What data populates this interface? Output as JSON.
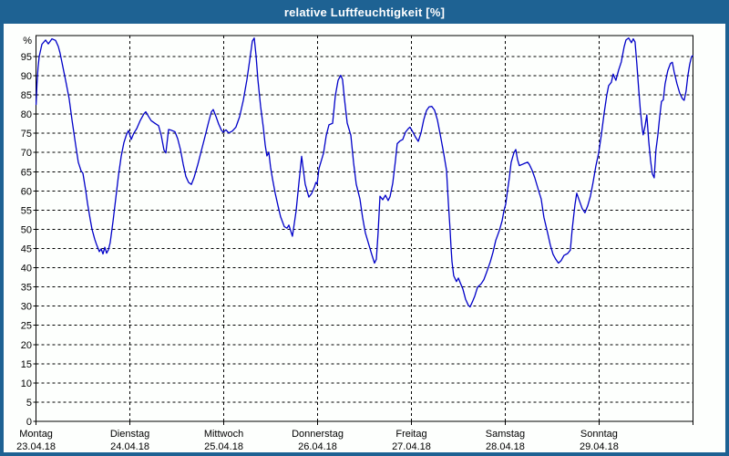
{
  "window": {
    "title": "relative Luftfeuchtigkeit [%]"
  },
  "colors": {
    "titlebar_bg": "#1E6293",
    "titlebar_text": "#FFFFFF",
    "frame": "#1E6293",
    "chart_bg": "#FDFFFD",
    "line": "#0000C8",
    "grid": "#000000",
    "axis": "#000000",
    "label_text": "#000000"
  },
  "chart_data": {
    "type": "line",
    "title": "relative Luftfeuchtigkeit [%]",
    "ylabel": "%",
    "ylim": [
      0,
      100.5
    ],
    "yticks": [
      0,
      5,
      10,
      15,
      20,
      25,
      30,
      35,
      40,
      45,
      50,
      55,
      60,
      65,
      70,
      75,
      80,
      85,
      90,
      95
    ],
    "grid": "dashed",
    "x_unit": "days",
    "xlim": [
      0,
      7
    ],
    "x_categories": [
      {
        "day": "Montag",
        "date": "23.04.18"
      },
      {
        "day": "Dienstag",
        "date": "24.04.18"
      },
      {
        "day": "Mittwoch",
        "date": "25.04.18"
      },
      {
        "day": "Donnerstag",
        "date": "26.04.18"
      },
      {
        "day": "Freitag",
        "date": "27.04.18"
      },
      {
        "day": "Samstag",
        "date": "28.04.18"
      },
      {
        "day": "Sonntag",
        "date": "29.04.18"
      }
    ],
    "legend": "none",
    "series": [
      {
        "name": "relative Luftfeuchtigkeit",
        "color": "#0000C8",
        "points": [
          [
            0,
            82.5
          ],
          [
            0.01,
            88
          ],
          [
            0.02,
            92
          ],
          [
            0.033,
            95
          ],
          [
            0.062,
            98.2
          ],
          [
            0.101,
            99.3
          ],
          [
            0.13,
            98.3
          ],
          [
            0.169,
            99.6
          ],
          [
            0.208,
            99.2
          ],
          [
            0.237,
            97.6
          ],
          [
            0.256,
            95.8
          ],
          [
            0.285,
            92.4
          ],
          [
            0.315,
            88.8
          ],
          [
            0.353,
            84
          ],
          [
            0.383,
            78.5
          ],
          [
            0.421,
            72
          ],
          [
            0.45,
            67.5
          ],
          [
            0.48,
            65.2
          ],
          [
            0.499,
            64.6
          ],
          [
            0.528,
            60.2
          ],
          [
            0.548,
            56.8
          ],
          [
            0.577,
            52.6
          ],
          [
            0.596,
            50
          ],
          [
            0.625,
            47.4
          ],
          [
            0.645,
            46
          ],
          [
            0.674,
            44.2
          ],
          [
            0.693,
            44.9
          ],
          [
            0.713,
            43.6
          ],
          [
            0.732,
            45.3
          ],
          [
            0.752,
            43.8
          ],
          [
            0.771,
            44.7
          ],
          [
            0.79,
            46.5
          ],
          [
            0.82,
            52
          ],
          [
            0.849,
            58
          ],
          [
            0.878,
            64
          ],
          [
            0.907,
            69
          ],
          [
            0.936,
            72.6
          ],
          [
            0.965,
            74.8
          ],
          [
            0.985,
            75.7
          ],
          [
            1.014,
            73.4
          ],
          [
            1.043,
            75.1
          ],
          [
            1.072,
            76.2
          ],
          [
            1.111,
            78.4
          ],
          [
            1.15,
            80.1
          ],
          [
            1.169,
            80.6
          ],
          [
            1.198,
            79.4
          ],
          [
            1.227,
            78.3
          ],
          [
            1.266,
            77.6
          ],
          [
            1.305,
            77
          ],
          [
            1.334,
            74.4
          ],
          [
            1.363,
            70.6
          ],
          [
            1.383,
            69.9
          ],
          [
            1.412,
            76
          ],
          [
            1.441,
            75.8
          ],
          [
            1.48,
            75.4
          ],
          [
            1.509,
            73.6
          ],
          [
            1.538,
            70.8
          ],
          [
            1.567,
            67
          ],
          [
            1.596,
            63.8
          ],
          [
            1.626,
            62.2
          ],
          [
            1.655,
            61.7
          ],
          [
            1.684,
            63.5
          ],
          [
            1.723,
            66.8
          ],
          [
            1.762,
            70.5
          ],
          [
            1.8,
            74.1
          ],
          [
            1.839,
            78
          ],
          [
            1.868,
            80.6
          ],
          [
            1.888,
            81.2
          ],
          [
            1.917,
            79.4
          ],
          [
            1.946,
            77.4
          ],
          [
            1.975,
            75.8
          ],
          [
            1.995,
            75.3
          ],
          [
            2.024,
            75.9
          ],
          [
            2.053,
            75.1
          ],
          [
            2.092,
            75.6
          ],
          [
            2.13,
            76.6
          ],
          [
            2.169,
            79.3
          ],
          [
            2.208,
            83.6
          ],
          [
            2.247,
            89
          ],
          [
            2.276,
            94
          ],
          [
            2.305,
            99
          ],
          [
            2.325,
            99.8
          ],
          [
            2.344,
            95.2
          ],
          [
            2.364,
            89
          ],
          [
            2.393,
            82
          ],
          [
            2.422,
            76.5
          ],
          [
            2.441,
            72
          ],
          [
            2.46,
            69.1
          ],
          [
            2.48,
            70.1
          ],
          [
            2.499,
            66.2
          ],
          [
            2.519,
            63.2
          ],
          [
            2.548,
            59.4
          ],
          [
            2.577,
            56.2
          ],
          [
            2.606,
            53.3
          ],
          [
            2.645,
            50.7
          ],
          [
            2.674,
            50.3
          ],
          [
            2.694,
            51.1
          ],
          [
            2.732,
            48.2
          ],
          [
            2.771,
            54.7
          ],
          [
            2.8,
            61.8
          ],
          [
            2.83,
            69
          ],
          [
            2.868,
            61.8
          ],
          [
            2.907,
            58.4
          ],
          [
            2.936,
            59.3
          ],
          [
            2.966,
            61
          ],
          [
            2.981,
            62.2
          ],
          [
            2.995,
            61.8
          ],
          [
            3.014,
            65.8
          ],
          [
            3.063,
            69.8
          ],
          [
            3.092,
            74.4
          ],
          [
            3.121,
            77.2
          ],
          [
            3.16,
            77.6
          ],
          [
            3.189,
            84.8
          ],
          [
            3.218,
            88.8
          ],
          [
            3.247,
            90.1
          ],
          [
            3.266,
            89
          ],
          [
            3.286,
            84
          ],
          [
            3.315,
            77.7
          ],
          [
            3.354,
            74.5
          ],
          [
            3.383,
            67.4
          ],
          [
            3.412,
            61.8
          ],
          [
            3.451,
            57.9
          ],
          [
            3.48,
            53.1
          ],
          [
            3.509,
            49.1
          ],
          [
            3.548,
            45.9
          ],
          [
            3.577,
            43.5
          ],
          [
            3.607,
            41.2
          ],
          [
            3.626,
            42.2
          ],
          [
            3.645,
            49
          ],
          [
            3.665,
            58.6
          ],
          [
            3.694,
            57.7
          ],
          [
            3.723,
            58.9
          ],
          [
            3.752,
            57.5
          ],
          [
            3.772,
            58.5
          ],
          [
            3.801,
            62
          ],
          [
            3.83,
            68
          ],
          [
            3.849,
            72.3
          ],
          [
            3.878,
            73
          ],
          [
            3.908,
            73.4
          ],
          [
            3.937,
            75.3
          ],
          [
            3.966,
            76.2
          ],
          [
            3.985,
            76.6
          ],
          [
            4.014,
            75.4
          ],
          [
            4.044,
            74
          ],
          [
            4.073,
            72.9
          ],
          [
            4.102,
            75.1
          ],
          [
            4.131,
            78.5
          ],
          [
            4.16,
            80.9
          ],
          [
            4.189,
            81.9
          ],
          [
            4.218,
            82
          ],
          [
            4.247,
            81
          ],
          [
            4.277,
            78.5
          ],
          [
            4.315,
            73.7
          ],
          [
            4.344,
            69.8
          ],
          [
            4.374,
            65.4
          ],
          [
            4.393,
            57
          ],
          [
            4.412,
            50
          ],
          [
            4.422,
            45.6
          ],
          [
            4.432,
            41.6
          ],
          [
            4.451,
            37.9
          ],
          [
            4.48,
            36.4
          ],
          [
            4.5,
            37.3
          ],
          [
            4.519,
            36.2
          ],
          [
            4.548,
            34.5
          ],
          [
            4.577,
            31.8
          ],
          [
            4.607,
            30.2
          ],
          [
            4.626,
            29.8
          ],
          [
            4.655,
            31.4
          ],
          [
            4.675,
            32.6
          ],
          [
            4.704,
            34.9
          ],
          [
            4.743,
            35.8
          ],
          [
            4.772,
            36.9
          ],
          [
            4.801,
            38.8
          ],
          [
            4.84,
            41.5
          ],
          [
            4.869,
            44
          ],
          [
            4.898,
            47.1
          ],
          [
            4.937,
            49.7
          ],
          [
            4.966,
            52.2
          ],
          [
            4.985,
            54.7
          ],
          [
            5.005,
            56.6
          ],
          [
            5.024,
            60
          ],
          [
            5.044,
            63.5
          ],
          [
            5.063,
            67.4
          ],
          [
            5.092,
            69.9
          ],
          [
            5.112,
            70.8
          ],
          [
            5.131,
            68.2
          ],
          [
            5.15,
            66.6
          ],
          [
            5.18,
            66.9
          ],
          [
            5.209,
            67.2
          ],
          [
            5.238,
            67.5
          ],
          [
            5.257,
            66.9
          ],
          [
            5.286,
            65.4
          ],
          [
            5.315,
            63.4
          ],
          [
            5.354,
            60.2
          ],
          [
            5.383,
            57.9
          ],
          [
            5.412,
            53.1
          ],
          [
            5.451,
            49.1
          ],
          [
            5.48,
            45.9
          ],
          [
            5.509,
            43.5
          ],
          [
            5.538,
            42.2
          ],
          [
            5.567,
            41.2
          ],
          [
            5.597,
            41.9
          ],
          [
            5.626,
            43.2
          ],
          [
            5.665,
            43.7
          ],
          [
            5.694,
            44.6
          ],
          [
            5.713,
            50
          ],
          [
            5.742,
            56.3
          ],
          [
            5.762,
            59.4
          ],
          [
            5.791,
            57.4
          ],
          [
            5.82,
            55.4
          ],
          [
            5.849,
            54.3
          ],
          [
            5.878,
            56.1
          ],
          [
            5.907,
            58.6
          ],
          [
            5.936,
            62.2
          ],
          [
            5.966,
            66.5
          ],
          [
            5.995,
            69.8
          ],
          [
            6.024,
            74.6
          ],
          [
            6.053,
            80.1
          ],
          [
            6.082,
            85
          ],
          [
            6.102,
            87.4
          ],
          [
            6.131,
            88.3
          ],
          [
            6.15,
            90.4
          ],
          [
            6.179,
            88.8
          ],
          [
            6.208,
            91.4
          ],
          [
            6.237,
            93.6
          ],
          [
            6.267,
            97.5
          ],
          [
            6.286,
            99.3
          ],
          [
            6.315,
            99.8
          ],
          [
            6.344,
            98.6
          ],
          [
            6.364,
            99.6
          ],
          [
            6.383,
            98.8
          ],
          [
            6.403,
            93
          ],
          [
            6.422,
            86.5
          ],
          [
            6.441,
            80.8
          ],
          [
            6.461,
            76
          ],
          [
            6.47,
            74.6
          ],
          [
            6.49,
            76.9
          ],
          [
            6.509,
            79.8
          ],
          [
            6.529,
            73
          ],
          [
            6.548,
            68
          ],
          [
            6.567,
            64.5
          ],
          [
            6.587,
            63.4
          ],
          [
            6.606,
            70.6
          ],
          [
            6.626,
            74.5
          ],
          [
            6.645,
            79
          ],
          [
            6.665,
            83.3
          ],
          [
            6.684,
            83.7
          ],
          [
            6.703,
            87.8
          ],
          [
            6.732,
            91.3
          ],
          [
            6.761,
            93.2
          ],
          [
            6.781,
            93.5
          ],
          [
            6.8,
            91
          ],
          [
            6.829,
            88
          ],
          [
            6.859,
            85.5
          ],
          [
            6.888,
            84
          ],
          [
            6.907,
            83.6
          ],
          [
            6.927,
            86
          ],
          [
            6.946,
            89.9
          ],
          [
            6.966,
            93
          ],
          [
            6.985,
            95
          ],
          [
            6.998,
            95.2
          ]
        ]
      }
    ]
  }
}
